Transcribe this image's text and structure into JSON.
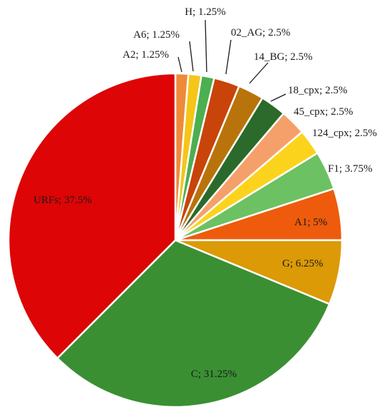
{
  "chart_data": {
    "type": "pie",
    "title": "",
    "slices": [
      {
        "name": "A2",
        "value": 1.25,
        "label": "A2; 1.25%",
        "color": "#EE8A3A"
      },
      {
        "name": "A6",
        "value": 1.25,
        "label": "A6; 1.25%",
        "color": "#F5C518"
      },
      {
        "name": "H",
        "value": 1.25,
        "label": "H; 1.25%",
        "color": "#4CAF50"
      },
      {
        "name": "02_AG",
        "value": 2.5,
        "label": "02_AG; 2.5%",
        "color": "#C8440B"
      },
      {
        "name": "14_BG",
        "value": 2.5,
        "label": "14_BG; 2.5%",
        "color": "#B8740A"
      },
      {
        "name": "18_cpx",
        "value": 2.5,
        "label": "18_cpx; 2.5%",
        "color": "#2B6A2A"
      },
      {
        "name": "45_cpx",
        "value": 2.5,
        "label": "45_cpx; 2.5%",
        "color": "#F5A06A"
      },
      {
        "name": "124_cpx",
        "value": 2.5,
        "label": "124_cpx; 2.5%",
        "color": "#FCD31C"
      },
      {
        "name": "F1",
        "value": 3.75,
        "label": "F1; 3.75%",
        "color": "#6CC163"
      },
      {
        "name": "A1",
        "value": 5,
        "label": "A1; 5%",
        "color": "#EE5B0C"
      },
      {
        "name": "G",
        "value": 6.25,
        "label": "G; 6.25%",
        "color": "#DB9A06"
      },
      {
        "name": "C",
        "value": 31.25,
        "label": "C; 31.25%",
        "color": "#3A8F33"
      },
      {
        "name": "URFs",
        "value": 37.5,
        "label": "URFs; 37.5%",
        "color": "#DD0505"
      }
    ]
  }
}
